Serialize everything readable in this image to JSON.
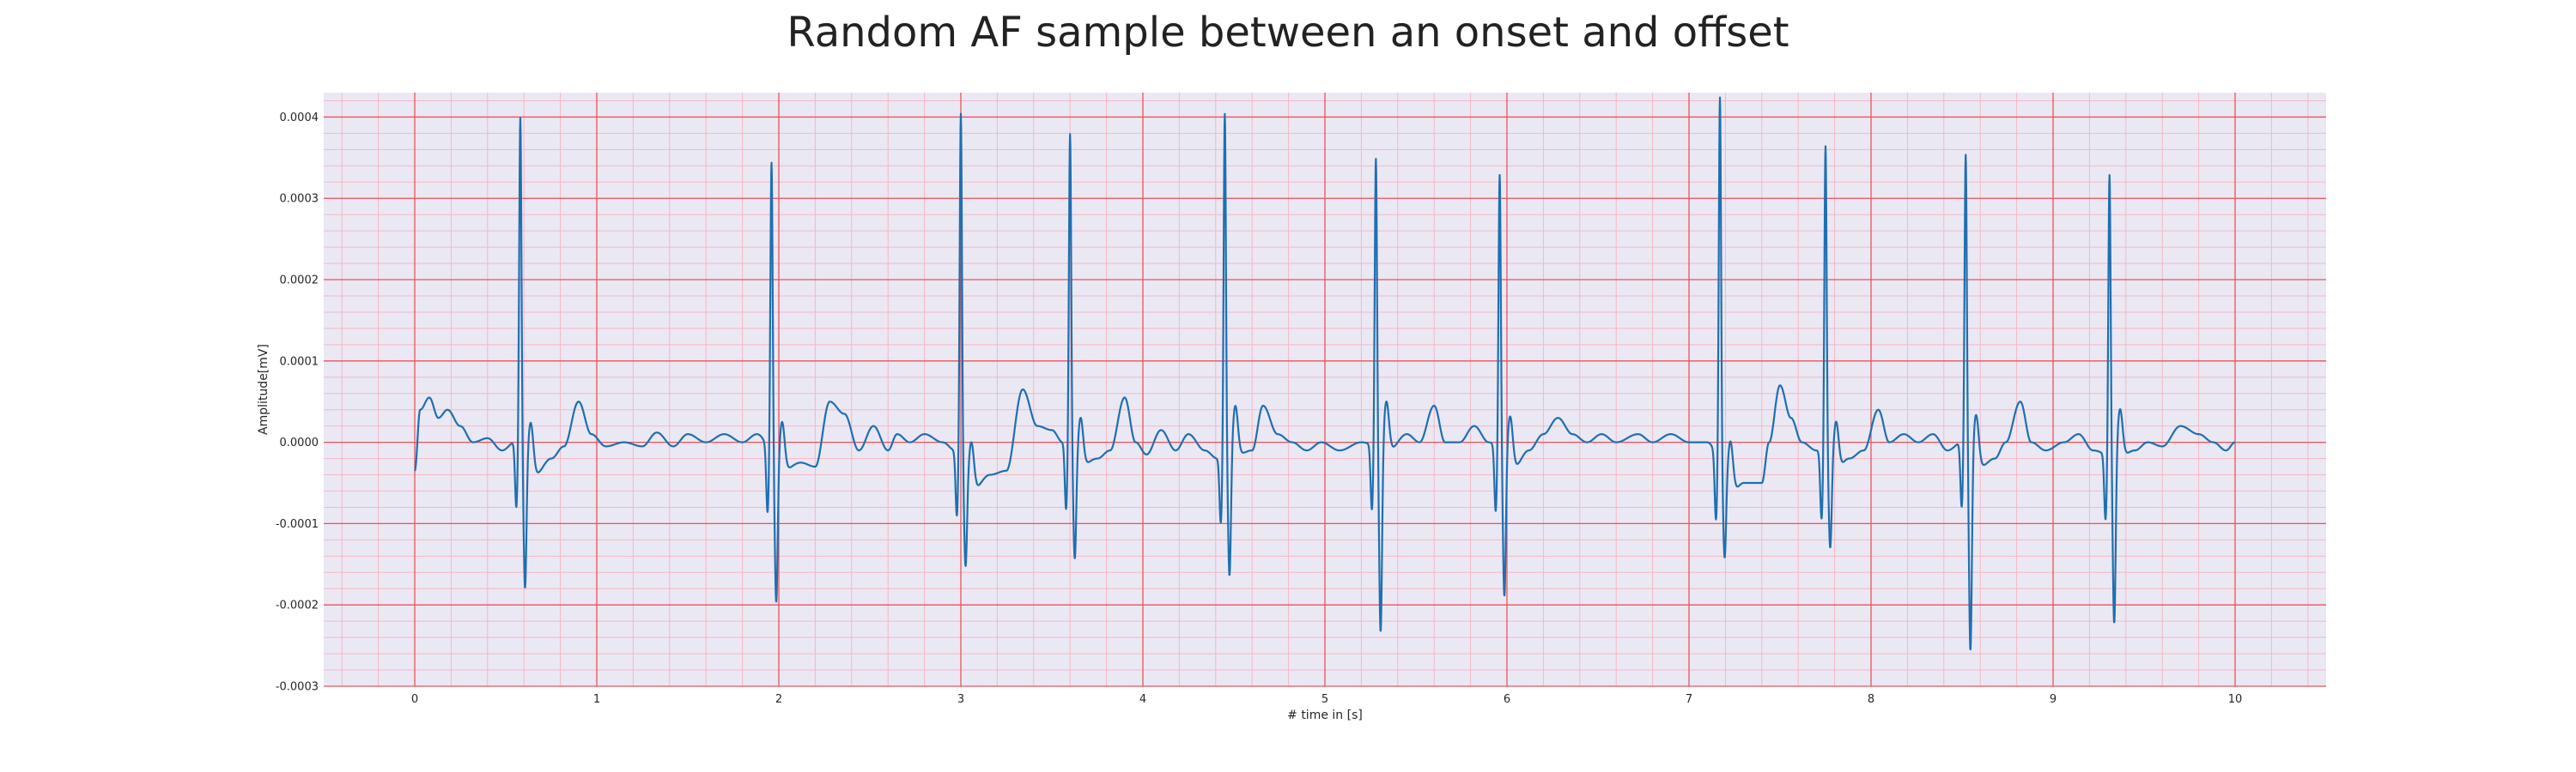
{
  "chart_data": {
    "type": "line",
    "title": "Random AF sample between an onset and offset",
    "xlabel": "# time in [s]",
    "ylabel": "Amplitude[mV]",
    "xlim": [
      -0.5,
      10.5
    ],
    "ylim": [
      -0.0003,
      0.00043
    ],
    "xticks": [
      0,
      1,
      2,
      3,
      4,
      5,
      6,
      7,
      8,
      9,
      10
    ],
    "xtick_labels": [
      "0",
      "1",
      "2",
      "3",
      "4",
      "5",
      "6",
      "7",
      "8",
      "9",
      "10"
    ],
    "yticks": [
      -0.0003,
      -0.0002,
      -0.0001,
      0.0,
      0.0001,
      0.0002,
      0.0003,
      0.0004
    ],
    "ytick_labels": [
      "-0.0003",
      "-0.0002",
      "-0.0001",
      "0.0000",
      "0.0001",
      "0.0002",
      "0.0003",
      "0.0004"
    ],
    "grid": true,
    "grid_major_color": "#e8545c",
    "grid_minor_color": "#f4b8c4",
    "background_color": "#eae8f3",
    "series": [
      {
        "color": "#1f6fb0",
        "x_start": 0,
        "x_end": 10,
        "baseline_knots": [
          [
            0.0,
            -3.5e-05
          ],
          [
            0.03,
            4e-05
          ],
          [
            0.08,
            5.5e-05
          ],
          [
            0.13,
            3e-05
          ],
          [
            0.18,
            4e-05
          ],
          [
            0.25,
            2e-05
          ],
          [
            0.32,
            0.0
          ],
          [
            0.4,
            5e-06
          ],
          [
            0.48,
            -1e-05
          ],
          [
            0.55,
            0.0
          ],
          [
            0.66,
            -4e-05
          ],
          [
            0.75,
            -2e-05
          ],
          [
            0.82,
            -5e-06
          ],
          [
            0.9,
            5e-05
          ],
          [
            0.97,
            1e-05
          ],
          [
            1.05,
            -5e-06
          ],
          [
            1.15,
            0.0
          ],
          [
            1.25,
            -5e-06
          ],
          [
            1.33,
            1.2e-05
          ],
          [
            1.42,
            -5e-06
          ],
          [
            1.5,
            1e-05
          ],
          [
            1.6,
            0.0
          ],
          [
            1.7,
            1e-05
          ],
          [
            1.8,
            0.0
          ],
          [
            1.88,
            1e-05
          ],
          [
            2.02,
            -3.5e-05
          ],
          [
            2.12,
            -2.5e-05
          ],
          [
            2.2,
            -3e-05
          ],
          [
            2.28,
            5e-05
          ],
          [
            2.36,
            3.5e-05
          ],
          [
            2.44,
            -1e-05
          ],
          [
            2.52,
            2e-05
          ],
          [
            2.6,
            -1e-05
          ],
          [
            2.65,
            1e-05
          ],
          [
            2.72,
            0.0
          ],
          [
            2.8,
            1e-05
          ],
          [
            2.9,
            0.0
          ],
          [
            2.97,
            -1e-05
          ],
          [
            3.06,
            -6e-05
          ],
          [
            3.16,
            -4e-05
          ],
          [
            3.25,
            -3.5e-05
          ],
          [
            3.34,
            6.5e-05
          ],
          [
            3.42,
            2e-05
          ],
          [
            3.5,
            1.5e-05
          ],
          [
            3.56,
            0.0
          ],
          [
            3.65,
            -3e-05
          ],
          [
            3.75,
            -2e-05
          ],
          [
            3.82,
            -1e-05
          ],
          [
            3.9,
            5.5e-05
          ],
          [
            3.96,
            0.0
          ],
          [
            4.02,
            -1.5e-05
          ],
          [
            4.1,
            1.5e-05
          ],
          [
            4.18,
            -1e-05
          ],
          [
            4.25,
            1e-05
          ],
          [
            4.34,
            -1e-05
          ],
          [
            4.41,
            -2e-05
          ],
          [
            4.52,
            -1.5e-05
          ],
          [
            4.6,
            -1e-05
          ],
          [
            4.66,
            4.5e-05
          ],
          [
            4.74,
            1e-05
          ],
          [
            4.82,
            0.0
          ],
          [
            4.9,
            -1e-05
          ],
          [
            4.98,
            0.0
          ],
          [
            5.08,
            -1e-05
          ],
          [
            5.2,
            0.0
          ],
          [
            5.35,
            -1e-05
          ],
          [
            5.45,
            1e-05
          ],
          [
            5.52,
            0.0
          ],
          [
            5.6,
            4.5e-05
          ],
          [
            5.66,
            0.0
          ],
          [
            5.74,
            0.0
          ],
          [
            5.82,
            2e-05
          ],
          [
            5.9,
            0.0
          ],
          [
            6.04,
            -3e-05
          ],
          [
            6.12,
            -1e-05
          ],
          [
            6.2,
            1e-05
          ],
          [
            6.28,
            3e-05
          ],
          [
            6.36,
            1e-05
          ],
          [
            6.44,
            0.0
          ],
          [
            6.52,
            1e-05
          ],
          [
            6.6,
            0.0
          ],
          [
            6.72,
            1e-05
          ],
          [
            6.8,
            0.0
          ],
          [
            6.9,
            1e-05
          ],
          [
            7.0,
            0.0
          ],
          [
            7.1,
            0.0
          ],
          [
            7.24,
            -6e-05
          ],
          [
            7.3,
            -5e-05
          ],
          [
            7.4,
            -5e-05
          ],
          [
            7.44,
            0.0
          ],
          [
            7.5,
            7e-05
          ],
          [
            7.56,
            3e-05
          ],
          [
            7.62,
            0.0
          ],
          [
            7.7,
            -1e-05
          ],
          [
            7.8,
            -3.5e-05
          ],
          [
            7.88,
            -2e-05
          ],
          [
            7.96,
            -1e-05
          ],
          [
            8.04,
            4e-05
          ],
          [
            8.1,
            0.0
          ],
          [
            8.18,
            1e-05
          ],
          [
            8.26,
            0.0
          ],
          [
            8.34,
            1e-05
          ],
          [
            8.42,
            -1e-05
          ],
          [
            8.5,
            0.0
          ],
          [
            8.6,
            -3e-05
          ],
          [
            8.68,
            -2e-05
          ],
          [
            8.74,
            0.0
          ],
          [
            8.82,
            5e-05
          ],
          [
            8.88,
            0.0
          ],
          [
            8.96,
            -1e-05
          ],
          [
            9.06,
            0.0
          ],
          [
            9.14,
            1e-05
          ],
          [
            9.22,
            -1e-05
          ],
          [
            9.35,
            -2e-05
          ],
          [
            9.45,
            -1e-05
          ],
          [
            9.52,
            0.0
          ],
          [
            9.6,
            -5e-06
          ],
          [
            9.7,
            2e-05
          ],
          [
            9.8,
            1e-05
          ],
          [
            9.88,
            0.0
          ],
          [
            9.95,
            -1e-05
          ],
          [
            10.0,
            0.0
          ]
        ],
        "qrs_complexes": [
          [
            0.58,
            0.00039,
            -0.00019
          ],
          [
            1.96,
            0.000335,
            -0.00021
          ],
          [
            3.0,
            0.000395,
            -0.000155
          ],
          [
            3.6,
            0.00037,
            -0.000155
          ],
          [
            4.45,
            0.000395,
            -0.00019
          ],
          [
            5.28,
            0.00034,
            -0.000255
          ],
          [
            5.96,
            0.00032,
            -0.000205
          ],
          [
            7.17,
            0.000415,
            -0.00015
          ],
          [
            7.75,
            0.000355,
            -0.000145
          ],
          [
            8.52,
            0.000345,
            -0.00027
          ],
          [
            9.31,
            0.00032,
            -0.000245
          ]
        ]
      }
    ]
  }
}
